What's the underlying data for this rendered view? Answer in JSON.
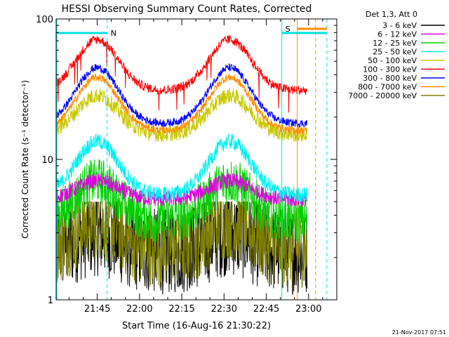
{
  "chart_data": {
    "type": "line",
    "title": "HESSI Observing Summary Count Rates, Corrected",
    "xlabel": "Start Time (16-Aug-16 21:30:22)",
    "ylabel": "Corrected Count Rate (s⁻¹ detector⁻¹)",
    "yscale": "log",
    "ylim": [
      1,
      100
    ],
    "y_ticks": [
      "1",
      "10",
      "100"
    ],
    "x_ticks": [
      "21:45",
      "22:00",
      "22:15",
      "22:30",
      "22:45",
      "23:00"
    ],
    "xlim_minutes_from_2130": [
      0.4,
      100
    ],
    "data_end_minutes": 89.5,
    "legend_title": "Det 1,3, Att 0",
    "legend_position": "right-outside",
    "series": [
      {
        "name": "3 - 6 keV",
        "color": "#000000",
        "base": 2.2,
        "peak_factor": 1.35,
        "noise": 0.55,
        "floor": 1.0,
        "ceil": 5.0
      },
      {
        "name": "6 - 12 keV",
        "color": "#e000e0",
        "base": 5.2,
        "peak_factor": 1.35,
        "noise": 0.1,
        "floor": 1.0,
        "ceil": 9.0
      },
      {
        "name": "12 - 25 keV",
        "color": "#00d000",
        "base": 3.7,
        "peak_factor": 1.9,
        "noise": 0.3,
        "floor": 1.0,
        "ceil": 10.0
      },
      {
        "name": "25 - 50 keV",
        "color": "#00f0f0",
        "base": 5.6,
        "peak_factor": 2.4,
        "noise": 0.1,
        "floor": 1.0,
        "ceil": 30.0
      },
      {
        "name": "50 - 100 keV",
        "color": "#c8c800",
        "base": 15.0,
        "peak_factor": 1.9,
        "noise": 0.1,
        "floor": 1.0,
        "ceil": 40.0
      },
      {
        "name": "100 - 300 keV",
        "color": "#ff0000",
        "base": 31.0,
        "peak_factor": 2.3,
        "noise": 0.06,
        "floor": 1.0,
        "ceil": 90.0
      },
      {
        "name": "300 - 800 keV",
        "color": "#0000ff",
        "base": 18.0,
        "peak_factor": 2.5,
        "noise": 0.05,
        "floor": 1.0,
        "ceil": 60.0
      },
      {
        "name": "800 - 7000 keV",
        "color": "#ff8c00",
        "base": 16.0,
        "peak_factor": 2.4,
        "noise": 0.05,
        "floor": 1.0,
        "ceil": 50.0
      },
      {
        "name": "7000 - 20000 keV",
        "color": "#808000",
        "base": 2.3,
        "peak_factor": 1.6,
        "noise": 0.5,
        "floor": 1.0,
        "ceil": 5.0
      }
    ],
    "peaks_time": [
      "21:45",
      "22:32"
    ],
    "valley_time": "22:08",
    "annotations": [
      {
        "text": "N",
        "color": "#00c8c8"
      },
      {
        "text": "S",
        "color": "#ff8c00"
      }
    ]
  },
  "footer": {
    "date": "21-Nov-2017 07:51"
  }
}
